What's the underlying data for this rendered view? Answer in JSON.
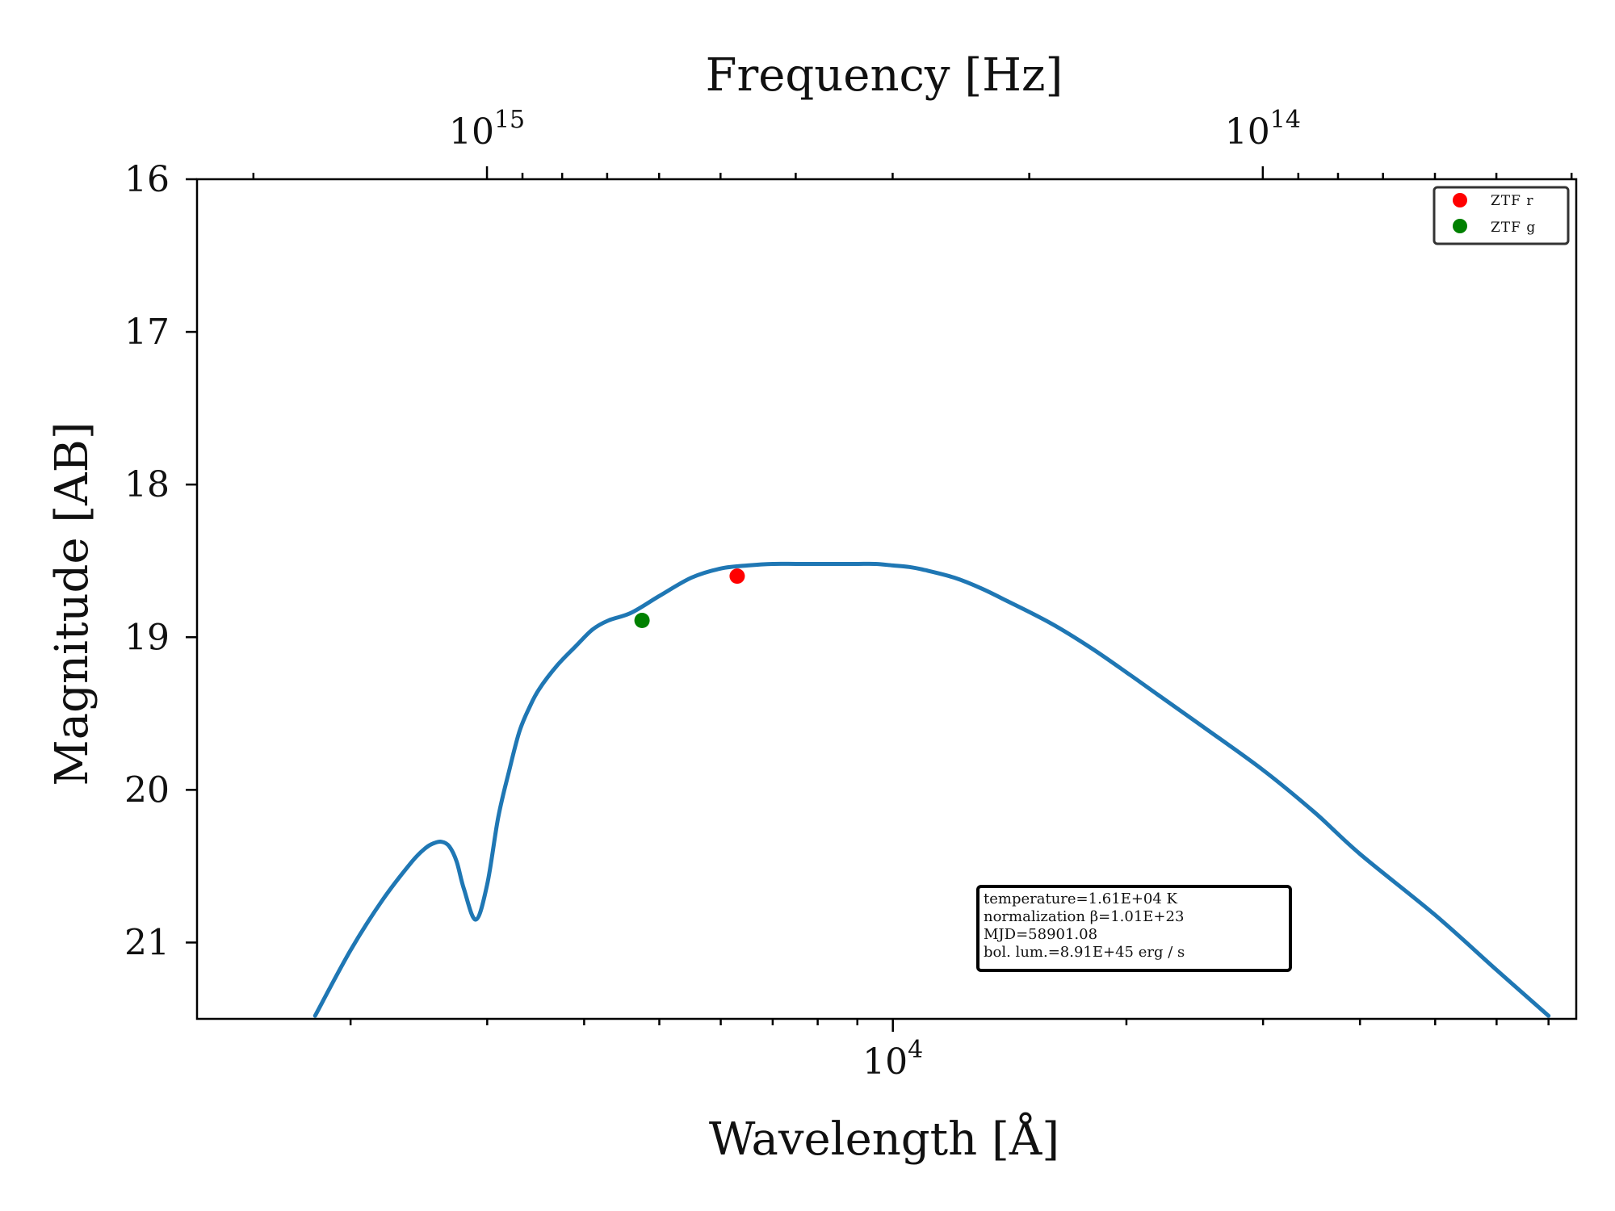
{
  "chart_data": {
    "type": "line",
    "x_axis": {
      "label": "Wavelength [Å]",
      "scale": "log",
      "range": [
        1268,
        76000
      ],
      "major_ticks": [
        {
          "value": 10000,
          "base": "10",
          "exp": "4"
        }
      ],
      "minor_ticks": [
        2000,
        3000,
        4000,
        5000,
        6000,
        7000,
        8000,
        9000,
        20000,
        30000,
        40000,
        50000,
        60000,
        70000
      ]
    },
    "top_axis": {
      "label": "Frequency [Hz]",
      "scale": "log",
      "major_ticks": [
        {
          "value": 1000000000000000.0,
          "base": "10",
          "exp": "15"
        },
        {
          "value": 100000000000000.0,
          "base": "10",
          "exp": "14"
        }
      ],
      "minor_ticks": [
        2000000000000000.0,
        900000000000000.0,
        800000000000000.0,
        700000000000000.0,
        600000000000000.0,
        500000000000000.0,
        400000000000000.0,
        300000000000000.0,
        200000000000000.0,
        90000000000000.0,
        80000000000000.0,
        70000000000000.0,
        60000000000000.0,
        50000000000000.0,
        40000000000000.0
      ]
    },
    "y_axis": {
      "label": "Magnitude [AB]",
      "inverted": true,
      "range": [
        16,
        21.5
      ],
      "ticks": [
        "16",
        "17",
        "18",
        "19",
        "20",
        "21"
      ]
    },
    "series": [
      {
        "kind": "line",
        "color": "#1f77b4",
        "x": [
          1800,
          2000,
          2200,
          2400,
          2500,
          2560,
          2620,
          2680,
          2740,
          2800,
          2900,
          3000,
          3100,
          3200,
          3300,
          3400,
          3500,
          3700,
          3900,
          4100,
          4300,
          4600,
          5000,
          5500,
          6000,
          6500,
          7000,
          7500,
          8000,
          8500,
          9000,
          9500,
          10000,
          10500,
          11000,
          12000,
          13000,
          14000,
          16000,
          18000,
          20000,
          22000,
          25000,
          30000,
          35000,
          40000,
          50000,
          60000,
          70000
        ],
        "y": [
          21.48,
          21.05,
          20.72,
          20.47,
          20.38,
          20.35,
          20.34,
          20.37,
          20.47,
          20.65,
          20.85,
          20.62,
          20.18,
          19.88,
          19.62,
          19.46,
          19.34,
          19.18,
          19.06,
          18.95,
          18.89,
          18.84,
          18.73,
          18.61,
          18.55,
          18.53,
          18.52,
          18.52,
          18.52,
          18.52,
          18.52,
          18.52,
          18.53,
          18.54,
          18.56,
          18.61,
          18.68,
          18.76,
          18.91,
          19.07,
          19.23,
          19.38,
          19.58,
          19.87,
          20.15,
          20.42,
          20.82,
          21.18,
          21.48
        ]
      },
      {
        "kind": "point",
        "name": "ZTF r",
        "color": "#ff0000",
        "x": [
          6300
        ],
        "y": [
          18.6
        ]
      },
      {
        "kind": "point",
        "name": "ZTF g",
        "color": "#008000",
        "x": [
          4750
        ],
        "y": [
          18.89
        ]
      }
    ],
    "legend": {
      "placement": "top-right",
      "entries": [
        {
          "label": "ZTF r",
          "color": "#ff0000"
        },
        {
          "label": "ZTF g",
          "color": "#008000"
        }
      ]
    },
    "annotation": {
      "placement": "bottom-center-right",
      "lines": [
        "temperature=1.61E+04 K",
        "normalization β=1.01E+23",
        "MJD=58901.08",
        "bol. lum.=8.91E+45 erg / s"
      ]
    },
    "grid": false
  }
}
